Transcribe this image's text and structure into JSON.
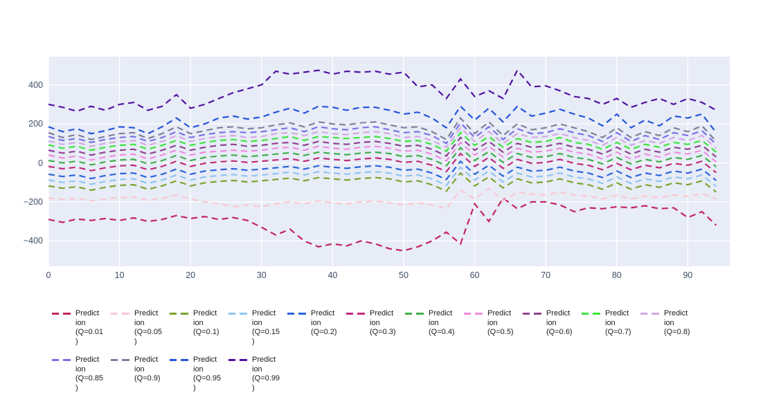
{
  "chart_data": {
    "type": "line",
    "title": "",
    "xlabel": "",
    "ylabel": "",
    "line_style": "dashed",
    "grid": true,
    "plot_bg": "#E7ECF6",
    "grid_color": "#ffffff",
    "tick_color": "#3D4E66",
    "x_range": [
      0,
      95.8
    ],
    "y_range": [
      -531,
      549
    ],
    "xticks": [
      0,
      10,
      20,
      30,
      40,
      50,
      60,
      70,
      80,
      90
    ],
    "xtick_labels": [
      "0",
      "10",
      "20",
      "30",
      "40",
      "50",
      "60",
      "70",
      "80",
      "90"
    ],
    "ytick_values": [
      400,
      200,
      0,
      -200,
      -400
    ],
    "ytick_labels": [
      "400",
      "200",
      "0",
      "−200",
      "−400"
    ],
    "x": [
      0,
      2,
      4,
      6,
      8,
      10,
      12,
      14,
      16,
      18,
      20,
      22,
      24,
      26,
      28,
      30,
      32,
      34,
      36,
      38,
      40,
      42,
      44,
      46,
      48,
      50,
      52,
      54,
      56,
      58,
      60,
      62,
      64,
      66,
      68,
      70,
      72,
      74,
      76,
      78,
      80,
      82,
      84,
      86,
      88,
      90,
      92,
      94
    ],
    "series": [
      {
        "name": "Prediction (Q=0.01)",
        "quantile": 0.01,
        "color": "#C32361",
        "values": [
          -290,
          -305,
          -288,
          -295,
          -285,
          -295,
          -282,
          -300,
          -290,
          -270,
          -285,
          -275,
          -290,
          -280,
          -295,
          -330,
          -370,
          -340,
          -400,
          -430,
          -415,
          -425,
          -400,
          -415,
          -440,
          -450,
          -430,
          -400,
          -355,
          -415,
          -210,
          -300,
          -180,
          -235,
          -200,
          -200,
          -215,
          -250,
          -230,
          -235,
          -225,
          -230,
          -220,
          -235,
          -230,
          -280,
          -250,
          -320
        ]
      },
      {
        "name": "Prediction (Q=0.05)",
        "quantile": 0.05,
        "color": "#FAC8D1",
        "values": [
          -180,
          -188,
          -182,
          -195,
          -185,
          -178,
          -175,
          -192,
          -182,
          -165,
          -185,
          -200,
          -210,
          -225,
          -215,
          -225,
          -210,
          -200,
          -210,
          -195,
          -205,
          -210,
          -200,
          -195,
          -205,
          -215,
          -205,
          -215,
          -235,
          -140,
          -185,
          -130,
          -195,
          -150,
          -160,
          -165,
          -150,
          -165,
          -170,
          -185,
          -165,
          -185,
          -170,
          -178,
          -165,
          -172,
          -158,
          -185
        ]
      },
      {
        "name": "Prediction (Q=0.1)",
        "quantile": 0.1,
        "color": "#7BA22F",
        "values": [
          -118,
          -130,
          -122,
          -140,
          -125,
          -115,
          -112,
          -135,
          -118,
          -92,
          -118,
          -102,
          -95,
          -90,
          -98,
          -92,
          -85,
          -78,
          -92,
          -75,
          -82,
          -88,
          -80,
          -75,
          -82,
          -98,
          -92,
          -112,
          -145,
          -52,
          -118,
          -72,
          -128,
          -82,
          -102,
          -98,
          -82,
          -102,
          -112,
          -135,
          -102,
          -135,
          -112,
          -125,
          -102,
          -112,
          -92,
          -150
        ]
      },
      {
        "name": "Prediction (Q=0.15)",
        "quantile": 0.15,
        "color": "#90C4EF",
        "values": [
          -88,
          -100,
          -92,
          -110,
          -95,
          -85,
          -82,
          -105,
          -88,
          -62,
          -88,
          -72,
          -65,
          -60,
          -68,
          -62,
          -55,
          -48,
          -62,
          -45,
          -52,
          -58,
          -50,
          -45,
          -52,
          -68,
          -62,
          -82,
          -115,
          -22,
          -88,
          -42,
          -98,
          -52,
          -72,
          -68,
          -52,
          -72,
          -82,
          -105,
          -72,
          -105,
          -82,
          -95,
          -72,
          -82,
          -62,
          -120
        ]
      },
      {
        "name": "Prediction (Q=0.2)",
        "quantile": 0.2,
        "color": "#2B63DC",
        "values": [
          -58,
          -70,
          -62,
          -80,
          -65,
          -55,
          -52,
          -75,
          -58,
          -32,
          -58,
          -42,
          -35,
          -30,
          -38,
          -32,
          -25,
          -18,
          -32,
          -15,
          -22,
          -28,
          -20,
          -15,
          -22,
          -38,
          -32,
          -52,
          -85,
          8,
          -58,
          -12,
          -68,
          -22,
          -42,
          -38,
          -22,
          -42,
          -52,
          -75,
          -42,
          -75,
          -52,
          -65,
          -42,
          -52,
          -32,
          -90
        ]
      },
      {
        "name": "Prediction (Q=0.3)",
        "quantile": 0.3,
        "color": "#C02A7C",
        "values": [
          -18,
          -30,
          -22,
          -40,
          -25,
          -15,
          -12,
          -35,
          -18,
          8,
          -18,
          -2,
          5,
          10,
          2,
          8,
          15,
          22,
          8,
          25,
          18,
          12,
          20,
          25,
          18,
          2,
          8,
          -12,
          -45,
          48,
          -18,
          28,
          -28,
          18,
          -2,
          2,
          18,
          -2,
          -12,
          -35,
          -2,
          -35,
          -12,
          -25,
          -2,
          -12,
          8,
          -50
        ]
      },
      {
        "name": "Prediction (Q=0.4)",
        "quantile": 0.4,
        "color": "#3FAE49",
        "values": [
          12,
          0,
          8,
          -10,
          5,
          15,
          18,
          -5,
          12,
          38,
          12,
          28,
          35,
          40,
          32,
          38,
          45,
          52,
          38,
          55,
          48,
          42,
          50,
          55,
          48,
          32,
          38,
          18,
          -15,
          78,
          12,
          58,
          2,
          48,
          28,
          32,
          48,
          28,
          18,
          -5,
          28,
          -5,
          18,
          5,
          28,
          18,
          38,
          -20
        ]
      },
      {
        "name": "Prediction (Q=0.5)",
        "quantile": 0.5,
        "color": "#F08BDF",
        "values": [
          40,
          25,
          35,
          15,
          30,
          40,
          45,
          20,
          40,
          65,
          40,
          55,
          60,
          65,
          60,
          65,
          75,
          80,
          65,
          85,
          75,
          70,
          80,
          85,
          75,
          60,
          65,
          45,
          10,
          105,
          40,
          85,
          30,
          75,
          55,
          60,
          75,
          55,
          45,
          20,
          55,
          20,
          45,
          30,
          55,
          45,
          65,
          5
        ]
      },
      {
        "name": "Prediction (Q=0.6)",
        "quantile": 0.6,
        "color": "#8F4190",
        "values": [
          65,
          50,
          60,
          40,
          55,
          65,
          70,
          45,
          65,
          90,
          65,
          80,
          90,
          95,
          85,
          90,
          100,
          105,
          90,
          110,
          100,
          95,
          105,
          110,
          100,
          85,
          90,
          70,
          35,
          130,
          65,
          110,
          55,
          100,
          80,
          85,
          100,
          80,
          70,
          45,
          80,
          45,
          70,
          55,
          80,
          70,
          90,
          30
        ]
      },
      {
        "name": "Prediction (Q=0.7)",
        "quantile": 0.7,
        "color": "#3CE43C",
        "values": [
          92,
          75,
          85,
          65,
          80,
          90,
          95,
          70,
          90,
          115,
          90,
          105,
          115,
          120,
          110,
          115,
          125,
          135,
          115,
          135,
          130,
          125,
          130,
          135,
          125,
          110,
          115,
          95,
          60,
          155,
          90,
          135,
          80,
          125,
          105,
          110,
          130,
          105,
          95,
          70,
          105,
          70,
          95,
          80,
          105,
          95,
          115,
          55
        ]
      },
      {
        "name": "Prediction (Q=0.8)",
        "quantile": 0.8,
        "color": "#D4A8E2",
        "values": [
          112,
          95,
          105,
          85,
          100,
          110,
          115,
          90,
          110,
          140,
          110,
          125,
          135,
          140,
          130,
          135,
          150,
          155,
          140,
          160,
          150,
          145,
          155,
          160,
          150,
          130,
          135,
          115,
          80,
          180,
          110,
          160,
          100,
          150,
          130,
          135,
          150,
          130,
          115,
          90,
          130,
          90,
          115,
          100,
          130,
          115,
          140,
          75
        ]
      },
      {
        "name": "Prediction (Q=0.85)",
        "quantile": 0.85,
        "color": "#7C6FE9",
        "values": [
          135,
          115,
          125,
          105,
          120,
          130,
          135,
          110,
          130,
          160,
          130,
          145,
          155,
          160,
          155,
          160,
          170,
          180,
          160,
          185,
          175,
          170,
          180,
          185,
          170,
          155,
          160,
          140,
          100,
          205,
          130,
          185,
          120,
          175,
          150,
          155,
          175,
          155,
          140,
          110,
          155,
          110,
          140,
          120,
          155,
          140,
          165,
          95
        ]
      },
      {
        "name": "Prediction (Q=0.9)",
        "quantile": 0.9,
        "color": "#7F7F99",
        "values": [
          155,
          130,
          145,
          120,
          135,
          150,
          155,
          125,
          150,
          185,
          150,
          165,
          180,
          185,
          175,
          180,
          195,
          205,
          185,
          210,
          200,
          195,
          205,
          210,
          195,
          180,
          185,
          160,
          120,
          230,
          150,
          210,
          140,
          200,
          170,
          180,
          200,
          180,
          160,
          130,
          180,
          130,
          160,
          140,
          180,
          160,
          190,
          110
        ]
      },
      {
        "name": "Prediction (Q=0.95)",
        "quantile": 0.95,
        "color": "#2353DC",
        "values": [
          185,
          160,
          175,
          150,
          165,
          185,
          180,
          150,
          185,
          230,
          180,
          200,
          230,
          240,
          225,
          235,
          260,
          280,
          255,
          290,
          285,
          270,
          285,
          285,
          270,
          250,
          260,
          230,
          180,
          290,
          220,
          280,
          210,
          290,
          240,
          255,
          275,
          250,
          230,
          190,
          250,
          180,
          220,
          190,
          240,
          230,
          250,
          155
        ]
      },
      {
        "name": "Prediction (Q=0.99)",
        "quantile": 0.99,
        "color": "#5013A2",
        "values": [
          300,
          285,
          265,
          290,
          270,
          300,
          310,
          270,
          290,
          350,
          280,
          300,
          330,
          360,
          380,
          400,
          470,
          455,
          465,
          475,
          455,
          470,
          465,
          470,
          455,
          465,
          390,
          400,
          330,
          430,
          340,
          370,
          330,
          475,
          390,
          395,
          370,
          340,
          330,
          300,
          330,
          285,
          310,
          330,
          300,
          330,
          310,
          270
        ]
      }
    ]
  },
  "legend": {
    "items": [
      {
        "series": "Prediction (Q=0.01)",
        "label_lines": "Predict\nion\n(Q=0.01\n)",
        "color": "#C32361"
      },
      {
        "series": "Prediction (Q=0.05)",
        "label_lines": "Predict\nion\n(Q=0.05\n)",
        "color": "#FAC8D1"
      },
      {
        "series": "Prediction (Q=0.1)",
        "label_lines": "Predict\nion\n(Q=0.1)",
        "color": "#7BA22F"
      },
      {
        "series": "Prediction (Q=0.15)",
        "label_lines": "Predict\nion\n(Q=0.15\n)",
        "color": "#90C4EF"
      },
      {
        "series": "Prediction (Q=0.2)",
        "label_lines": "Predict\nion\n(Q=0.2)",
        "color": "#2B63DC"
      },
      {
        "series": "Prediction (Q=0.3)",
        "label_lines": "Predict\nion\n(Q=0.3)",
        "color": "#C02A7C"
      },
      {
        "series": "Prediction (Q=0.4)",
        "label_lines": "Predict\nion\n(Q=0.4)",
        "color": "#3FAE49"
      },
      {
        "series": "Prediction (Q=0.5)",
        "label_lines": "Predict\nion\n(Q=0.5)",
        "color": "#F08BDF"
      },
      {
        "series": "Prediction (Q=0.6)",
        "label_lines": "Predict\nion\n(Q=0.6)",
        "color": "#8F4190"
      },
      {
        "series": "Prediction (Q=0.7)",
        "label_lines": "Predict\nion\n(Q=0.7)",
        "color": "#3CE43C"
      },
      {
        "series": "Prediction (Q=0.8)",
        "label_lines": "Predict\nion\n(Q=0.8)",
        "color": "#D4A8E2"
      },
      {
        "series": "Prediction (Q=0.85)",
        "label_lines": "Predict\nion\n(Q=0.85\n)",
        "color": "#7C6FE9"
      },
      {
        "series": "Prediction (Q=0.9)",
        "label_lines": "Predict\nion\n(Q=0.9)",
        "color": "#7F7F99"
      },
      {
        "series": "Prediction (Q=0.95)",
        "label_lines": "Predict\nion\n(Q=0.95\n)",
        "color": "#2353DC"
      },
      {
        "series": "Prediction (Q=0.99)",
        "label_lines": "Predict\nion\n(Q=0.99\n)",
        "color": "#5013A2"
      }
    ]
  }
}
